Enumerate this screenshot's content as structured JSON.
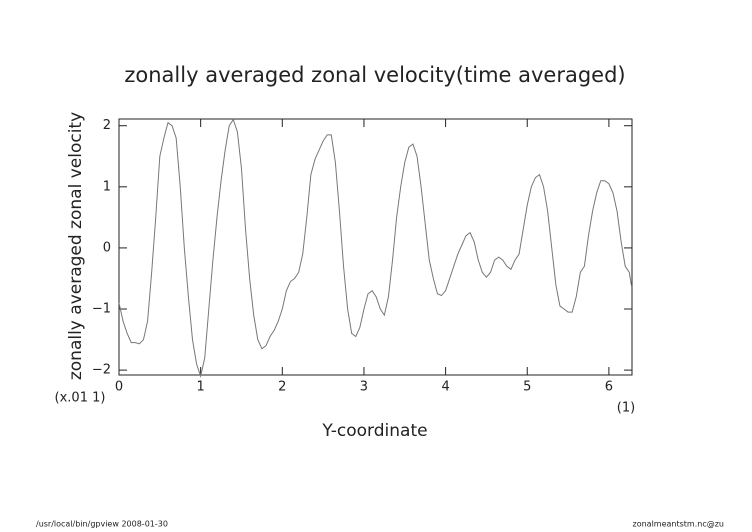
{
  "chart_data": {
    "type": "line",
    "title": "zonally averaged zonal velocity(time averaged)",
    "x_label": "Y-coordinate",
    "y_label": "zonally averaged zonal velocity",
    "y_unit_label": "(x.01 1)",
    "x_unit_label": "(1)",
    "footer_left": "/usr/local/bin/gpview   2008-01-30",
    "footer_right": "zonalmeantstm.nc@zu",
    "xlim": [
      0,
      6.283
    ],
    "ylim": [
      -2.08,
      2.11
    ],
    "xticks": [
      0,
      1,
      2,
      3,
      4,
      5,
      6
    ],
    "yticks": [
      {
        "value": -2,
        "label": "−2"
      },
      {
        "value": -1,
        "label": "−1"
      },
      0,
      1,
      2
    ],
    "x": [
      0,
      0.05,
      0.1,
      0.15,
      0.2,
      0.25,
      0.3,
      0.35,
      0.4,
      0.45,
      0.5,
      0.55,
      0.6,
      0.65,
      0.7,
      0.75,
      0.8,
      0.85,
      0.9,
      0.95,
      1.0,
      1.05,
      1.1,
      1.15,
      1.2,
      1.25,
      1.3,
      1.35,
      1.4,
      1.45,
      1.5,
      1.55,
      1.6,
      1.65,
      1.7,
      1.75,
      1.8,
      1.85,
      1.9,
      1.95,
      2.0,
      2.05,
      2.1,
      2.15,
      2.2,
      2.25,
      2.3,
      2.35,
      2.4,
      2.45,
      2.5,
      2.55,
      2.6,
      2.65,
      2.7,
      2.75,
      2.8,
      2.85,
      2.9,
      2.95,
      3.0,
      3.05,
      3.1,
      3.15,
      3.2,
      3.25,
      3.3,
      3.35,
      3.4,
      3.45,
      3.5,
      3.55,
      3.6,
      3.65,
      3.7,
      3.75,
      3.8,
      3.85,
      3.9,
      3.95,
      4.0,
      4.05,
      4.1,
      4.15,
      4.2,
      4.25,
      4.3,
      4.35,
      4.4,
      4.45,
      4.5,
      4.55,
      4.6,
      4.65,
      4.7,
      4.75,
      4.8,
      4.85,
      4.9,
      4.95,
      5.0,
      5.05,
      5.1,
      5.15,
      5.2,
      5.25,
      5.3,
      5.35,
      5.4,
      5.45,
      5.5,
      5.55,
      5.6,
      5.65,
      5.7,
      5.75,
      5.8,
      5.85,
      5.9,
      5.95,
      6.0,
      6.05,
      6.1,
      6.15,
      6.2,
      6.25,
      6.28
    ],
    "series": [
      {
        "color": "#777777",
        "values": [
          -0.9,
          -1.2,
          -1.4,
          -1.55,
          -1.55,
          -1.57,
          -1.5,
          -1.2,
          -0.4,
          0.5,
          1.5,
          1.8,
          2.05,
          2.0,
          1.8,
          1.0,
          0.0,
          -0.8,
          -1.5,
          -1.9,
          -2.1,
          -1.8,
          -1.0,
          -0.2,
          0.5,
          1.1,
          1.6,
          2.0,
          2.1,
          1.9,
          1.3,
          0.3,
          -0.5,
          -1.1,
          -1.5,
          -1.65,
          -1.6,
          -1.45,
          -1.35,
          -1.2,
          -1.0,
          -0.7,
          -0.55,
          -0.5,
          -0.4,
          -0.1,
          0.5,
          1.2,
          1.45,
          1.6,
          1.75,
          1.85,
          1.85,
          1.4,
          0.6,
          -0.3,
          -1.0,
          -1.4,
          -1.45,
          -1.3,
          -1.0,
          -0.75,
          -0.7,
          -0.8,
          -1.0,
          -1.1,
          -0.8,
          -0.2,
          0.5,
          1.0,
          1.4,
          1.65,
          1.7,
          1.5,
          1.0,
          0.4,
          -0.2,
          -0.5,
          -0.75,
          -0.78,
          -0.7,
          -0.5,
          -0.3,
          -0.1,
          0.05,
          0.2,
          0.25,
          0.1,
          -0.2,
          -0.4,
          -0.48,
          -0.4,
          -0.2,
          -0.15,
          -0.2,
          -0.3,
          -0.35,
          -0.2,
          -0.1,
          0.3,
          0.7,
          1.0,
          1.15,
          1.2,
          1.0,
          0.6,
          0.0,
          -0.6,
          -0.95,
          -1.0,
          -1.05,
          -1.05,
          -0.8,
          -0.4,
          -0.3,
          0.2,
          0.6,
          0.9,
          1.1,
          1.1,
          1.05,
          0.9,
          0.6,
          0.1,
          -0.3,
          -0.4,
          -0.65
        ]
      }
    ]
  }
}
